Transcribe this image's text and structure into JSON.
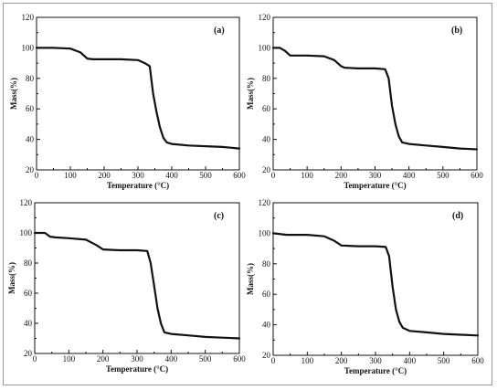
{
  "chart_data": [
    {
      "type": "line",
      "panel_label": "(a)",
      "xlabel": "Temperature (°C)",
      "ylabel": "Mass(%)",
      "xlim": [
        0,
        600
      ],
      "ylim": [
        20,
        120
      ],
      "xticks": [
        0,
        100,
        200,
        300,
        400,
        500,
        600
      ],
      "yticks": [
        20,
        40,
        60,
        80,
        100,
        120
      ],
      "grid": false,
      "series": [
        {
          "x": [
            0,
            50,
            100,
            130,
            150,
            165,
            200,
            250,
            300,
            320,
            335,
            345,
            355,
            365,
            375,
            385,
            400,
            450,
            500,
            550,
            600
          ],
          "y": [
            100,
            100,
            99.5,
            97,
            93,
            92.5,
            92.5,
            92.5,
            92,
            90,
            88,
            70,
            58,
            48,
            41,
            38,
            37,
            36,
            35.5,
            35,
            34
          ]
        }
      ]
    },
    {
      "type": "line",
      "panel_label": "(b)",
      "xlabel": "Temperature (°C)",
      "ylabel": "Mass(%)",
      "xlim": [
        0,
        600
      ],
      "ylim": [
        20,
        120
      ],
      "xticks": [
        0,
        100,
        200,
        300,
        400,
        500,
        600
      ],
      "yticks": [
        20,
        40,
        60,
        80,
        100,
        120
      ],
      "grid": false,
      "series": [
        {
          "x": [
            0,
            20,
            35,
            50,
            100,
            150,
            180,
            200,
            210,
            250,
            300,
            330,
            340,
            350,
            360,
            370,
            380,
            400,
            450,
            500,
            550,
            600
          ],
          "y": [
            100,
            100,
            98,
            95,
            95,
            94.5,
            92,
            88,
            87,
            86.5,
            86.5,
            86,
            80,
            62,
            50,
            42,
            38,
            37,
            36,
            35,
            34,
            33.5
          ]
        }
      ]
    },
    {
      "type": "line",
      "panel_label": "(c)",
      "xlabel": "Temperature (°C)",
      "ylabel": "Mass(%)",
      "xlim": [
        0,
        600
      ],
      "ylim": [
        20,
        120
      ],
      "xticks": [
        0,
        100,
        200,
        300,
        400,
        500,
        600
      ],
      "yticks": [
        20,
        40,
        60,
        80,
        100,
        120
      ],
      "grid": false,
      "series": [
        {
          "x": [
            0,
            30,
            45,
            60,
            100,
            150,
            180,
            200,
            250,
            300,
            330,
            340,
            350,
            360,
            370,
            380,
            400,
            450,
            500,
            550,
            600
          ],
          "y": [
            100,
            100,
            97.5,
            97,
            96.5,
            95.5,
            92,
            89,
            88.5,
            88.5,
            88,
            80,
            65,
            50,
            40,
            34,
            33,
            32,
            31,
            30.5,
            30
          ]
        }
      ]
    },
    {
      "type": "line",
      "panel_label": "(d)",
      "xlabel": "Temperature (°C)",
      "ylabel": "Mass(%)",
      "xlim": [
        0,
        600
      ],
      "ylim": [
        20,
        120
      ],
      "xticks": [
        0,
        100,
        200,
        300,
        400,
        500,
        600
      ],
      "yticks": [
        20,
        40,
        60,
        80,
        100,
        120
      ],
      "grid": false,
      "series": [
        {
          "x": [
            0,
            40,
            100,
            150,
            180,
            200,
            250,
            300,
            330,
            340,
            350,
            360,
            370,
            380,
            400,
            450,
            500,
            550,
            600
          ],
          "y": [
            100,
            99,
            99,
            98,
            95,
            92,
            91.5,
            91.5,
            91,
            85,
            65,
            50,
            42,
            38,
            36,
            35,
            34,
            33.5,
            33
          ]
        }
      ]
    }
  ]
}
